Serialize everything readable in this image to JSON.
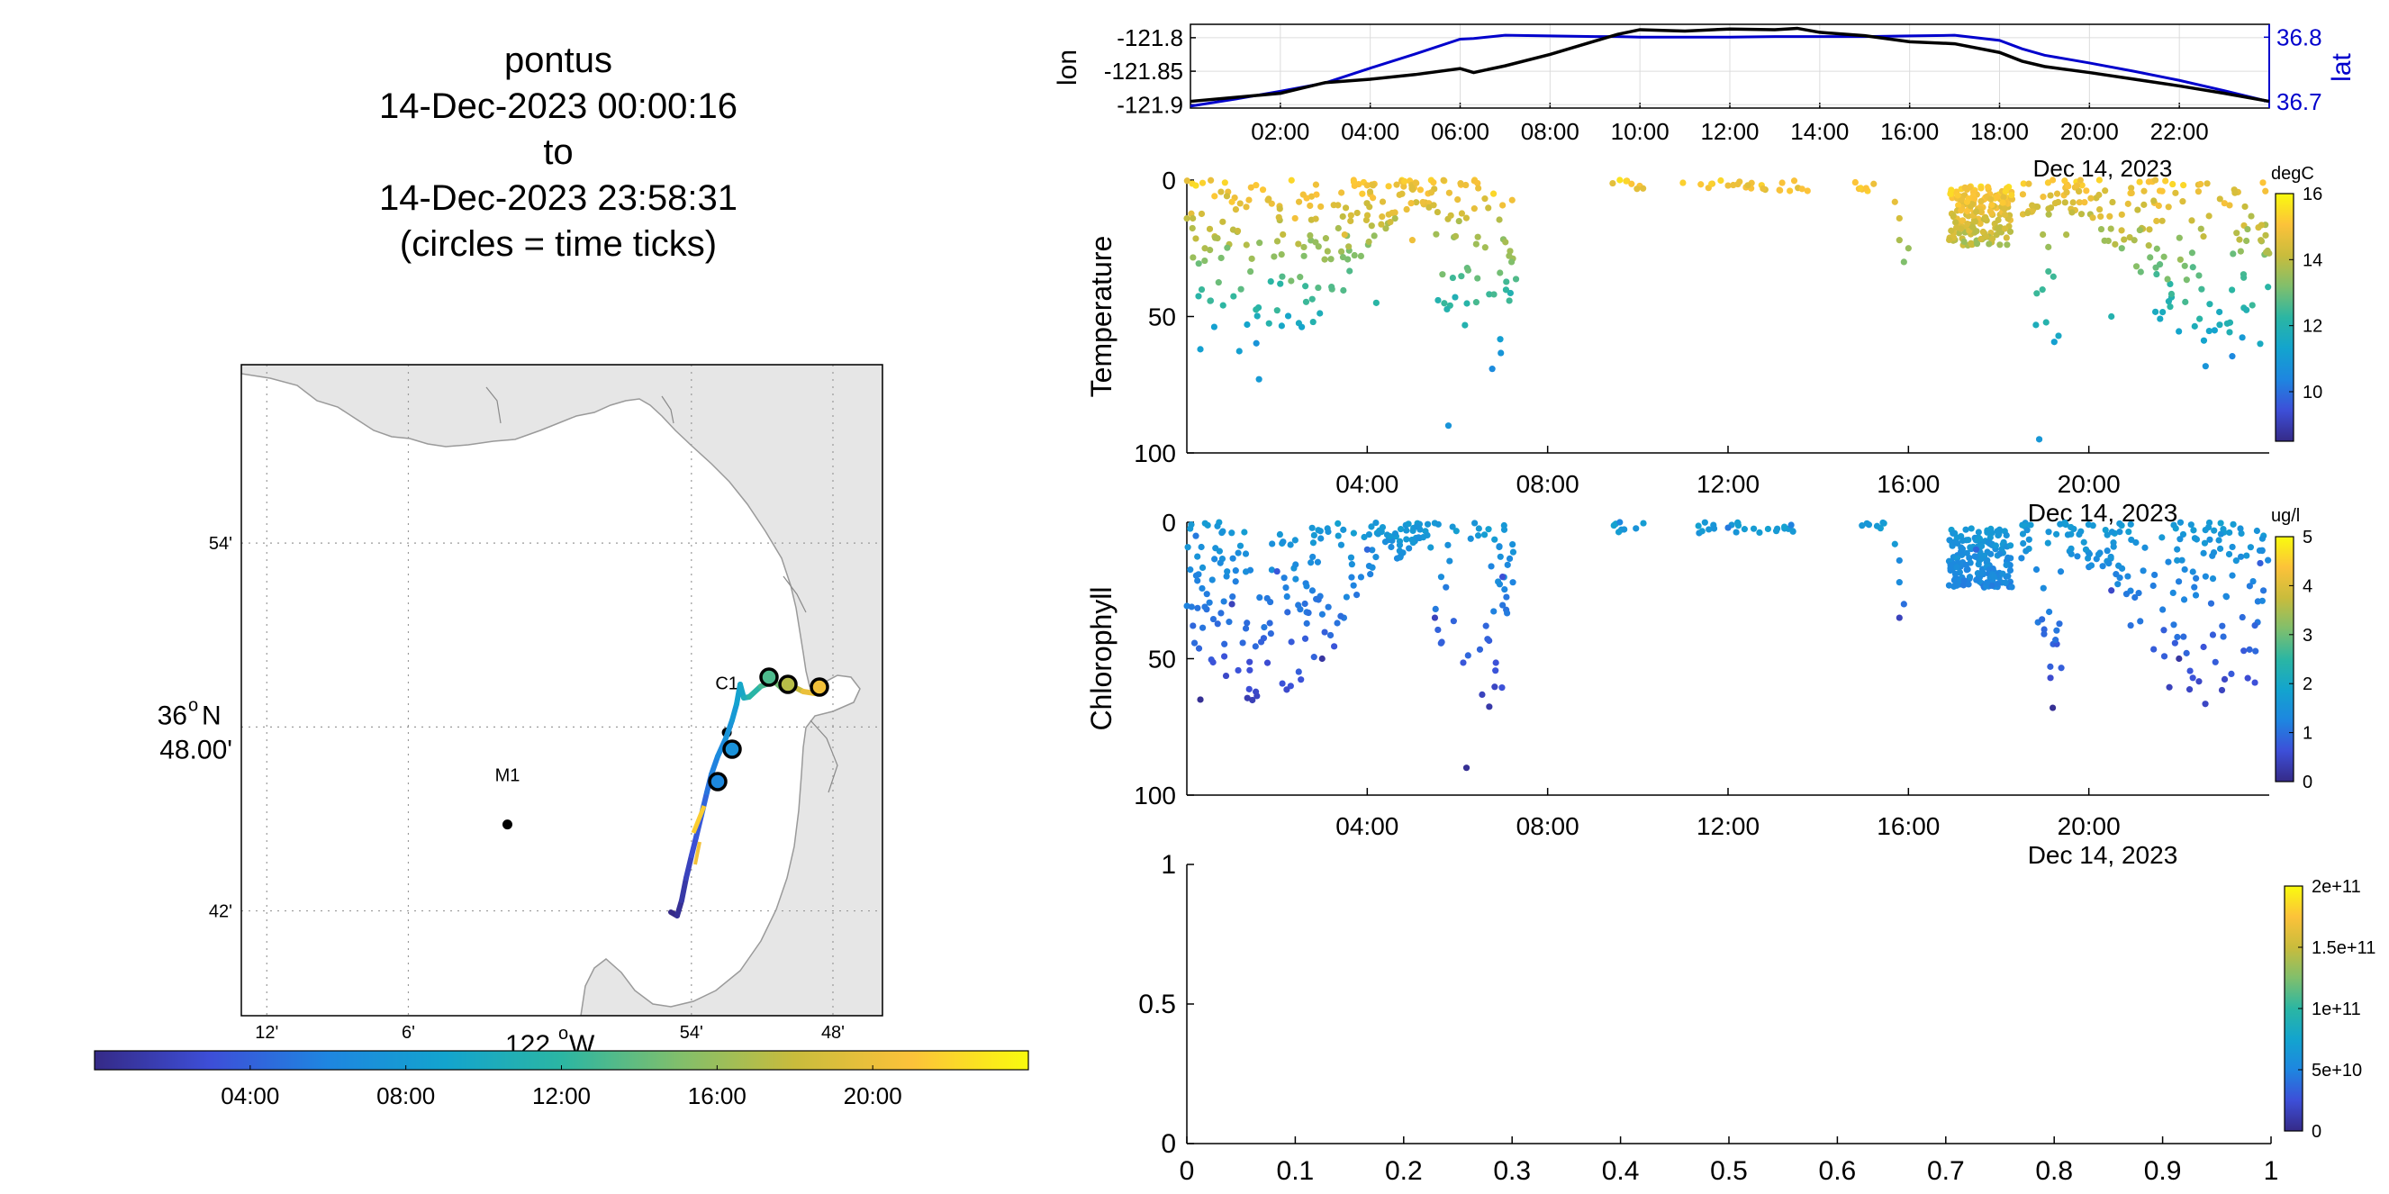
{
  "title": {
    "line1": "pontus",
    "line2": "14-Dec-2023 00:00:16",
    "line3": "to",
    "line4": "14-Dec-2023 23:58:31",
    "line5": "(circles = time ticks)"
  },
  "colors": {
    "lon_line": "#000000",
    "lat_line": "#0000cc",
    "land": "#e6e6e6",
    "coast": "#9a9a9a",
    "colormap": [
      "#352a87",
      "#3d4fd8",
      "#1e86e0",
      "#13a4ce",
      "#2bb6a3",
      "#80bf6c",
      "#c9bc3c",
      "#fcc23a",
      "#f9fb0e"
    ]
  },
  "map": {
    "lon_ticks": [
      "12'",
      "6'",
      "54'",
      "48'"
    ],
    "lon_main": "122",
    "lon_main_suffix": "W",
    "lat_ticks": [
      "54'",
      "42'"
    ],
    "lat_main_deg": "36",
    "lat_main_suffix": "N",
    "lat_main_min": "48.00'",
    "stations": [
      {
        "name": "M1",
        "lon": -122.03,
        "lat": 36.747
      },
      {
        "name": "C1",
        "lon": -121.875,
        "lat": 36.797
      }
    ],
    "lon_range": [
      -122.218,
      -121.765
    ],
    "lat_range": [
      36.643,
      36.997
    ],
    "track_colorbar_ticks": [
      "04:00",
      "08:00",
      "12:00",
      "16:00",
      "20:00"
    ]
  },
  "chart_data": [
    {
      "type": "line",
      "panel": "position",
      "xlabel": "Dec 14, 2023",
      "x_ticks": [
        "02:00",
        "04:00",
        "06:00",
        "08:00",
        "10:00",
        "12:00",
        "14:00",
        "16:00",
        "18:00",
        "20:00",
        "22:00"
      ],
      "xlim_hours": [
        0,
        24
      ],
      "ylabel_left": "lon",
      "ylabel_right": "lat",
      "yticks_left": [
        "-121.8",
        "-121.85",
        "-121.9"
      ],
      "yticks_right": [
        "36.8",
        "36.7"
      ],
      "ylim_left": [
        -121.905,
        -121.78
      ],
      "ylim_right": [
        36.69,
        36.82
      ],
      "x_hours": [
        0,
        1,
        2,
        3,
        4,
        5,
        6,
        6.3,
        7,
        8,
        9,
        9.5,
        10,
        11,
        12,
        13,
        13.5,
        14,
        15,
        16,
        17,
        18,
        18.5,
        19,
        20,
        21,
        22,
        23,
        24
      ],
      "series": [
        {
          "name": "lon",
          "axis": "left",
          "values": [
            -121.895,
            -121.889,
            -121.883,
            -121.867,
            -121.862,
            -121.855,
            -121.846,
            -121.852,
            -121.842,
            -121.825,
            -121.805,
            -121.795,
            -121.788,
            -121.79,
            -121.787,
            -121.788,
            -121.786,
            -121.792,
            -121.797,
            -121.806,
            -121.809,
            -121.822,
            -121.835,
            -121.843,
            -121.852,
            -121.862,
            -121.872,
            -121.883,
            -121.895
          ]
        },
        {
          "name": "lat",
          "axis": "right",
          "values": [
            36.693,
            36.704,
            36.716,
            36.729,
            36.752,
            36.774,
            36.797,
            36.798,
            36.803,
            36.802,
            36.801,
            36.801,
            36.8,
            36.8,
            36.8,
            36.801,
            36.801,
            36.801,
            36.801,
            36.802,
            36.803,
            36.795,
            36.782,
            36.772,
            36.76,
            36.747,
            36.733,
            36.717,
            36.7
          ]
        }
      ]
    },
    {
      "type": "scatter",
      "panel": "temperature",
      "ylabel": "Temperature",
      "xlabel": "Dec 14, 2023",
      "x_ticks": [
        "04:00",
        "08:00",
        "12:00",
        "16:00",
        "20:00"
      ],
      "xlim_hours": [
        0,
        24
      ],
      "y_ticks": [
        "0",
        "50",
        "100"
      ],
      "ylim": [
        0,
        100
      ],
      "y_reversed": true,
      "colorbar_label": "degC",
      "colorbar_ticks": [
        "16",
        "14",
        "12",
        "10"
      ],
      "clim": [
        8.5,
        16
      ],
      "sample_points": [
        {
          "t": 0.2,
          "z": 2,
          "c": 15.5
        },
        {
          "t": 0.4,
          "z": 25,
          "c": 13.8
        },
        {
          "t": 0.3,
          "z": 62,
          "c": 11.2
        },
        {
          "t": 1.0,
          "z": 8,
          "c": 15.2
        },
        {
          "t": 1.2,
          "z": 40,
          "c": 12.8
        },
        {
          "t": 1.6,
          "z": 73,
          "c": 11.0
        },
        {
          "t": 2.4,
          "z": 14,
          "c": 14.9
        },
        {
          "t": 2.8,
          "z": 52,
          "c": 12.0
        },
        {
          "t": 3.5,
          "z": 20,
          "c": 14.6
        },
        {
          "t": 4.2,
          "z": 45,
          "c": 12.2
        },
        {
          "t": 5.0,
          "z": 22,
          "c": 14.8
        },
        {
          "t": 5.8,
          "z": 90,
          "c": 10.8
        },
        {
          "t": 6.8,
          "z": 5,
          "c": 15.4
        },
        {
          "t": 7.2,
          "z": 30,
          "c": 13.2
        },
        {
          "t": 9.6,
          "z": 0,
          "c": 15.6
        },
        {
          "t": 11.0,
          "z": 1,
          "c": 15.3
        },
        {
          "t": 12.0,
          "z": 2,
          "c": 14.8
        },
        {
          "t": 13.2,
          "z": 1,
          "c": 15.0
        },
        {
          "t": 16.0,
          "z": 25,
          "c": 13.5
        },
        {
          "t": 17.3,
          "z": 8,
          "c": 15.2
        },
        {
          "t": 18.0,
          "z": 18,
          "c": 14.0
        },
        {
          "t": 18.9,
          "z": 95,
          "c": 10.9
        },
        {
          "t": 19.5,
          "z": 20,
          "c": 13.8
        },
        {
          "t": 20.5,
          "z": 50,
          "c": 12.0
        },
        {
          "t": 21.5,
          "z": 15,
          "c": 14.6
        },
        {
          "t": 22.5,
          "z": 40,
          "c": 12.5
        },
        {
          "t": 23.8,
          "z": 60,
          "c": 11.6
        }
      ]
    },
    {
      "type": "scatter",
      "panel": "chlorophyll",
      "ylabel": "Chlorophyll",
      "xlabel": "Dec 14, 2023",
      "x_ticks": [
        "04:00",
        "08:00",
        "12:00",
        "16:00",
        "20:00"
      ],
      "xlim_hours": [
        0,
        24
      ],
      "y_ticks": [
        "0",
        "50",
        "100"
      ],
      "ylim": [
        0,
        100
      ],
      "y_reversed": true,
      "colorbar_label": "ug/l",
      "colorbar_ticks": [
        "5",
        "4",
        "3",
        "2",
        "1",
        "0"
      ],
      "clim": [
        0,
        5
      ],
      "sample_points": [
        {
          "t": 0.2,
          "z": 5,
          "c": 1.1
        },
        {
          "t": 0.3,
          "z": 65,
          "c": 0.1
        },
        {
          "t": 1.0,
          "z": 30,
          "c": 0.4
        },
        {
          "t": 2.0,
          "z": 18,
          "c": 0.7
        },
        {
          "t": 3.0,
          "z": 50,
          "c": 0.2
        },
        {
          "t": 4.0,
          "z": 10,
          "c": 0.9
        },
        {
          "t": 5.5,
          "z": 35,
          "c": 0.4
        },
        {
          "t": 6.2,
          "z": 90,
          "c": 0.1
        },
        {
          "t": 7.0,
          "z": 20,
          "c": 0.6
        },
        {
          "t": 9.6,
          "z": 0,
          "c": 1.3
        },
        {
          "t": 12.0,
          "z": 2,
          "c": 1.1
        },
        {
          "t": 13.4,
          "z": 1,
          "c": 1.2
        },
        {
          "t": 15.8,
          "z": 35,
          "c": 0.4
        },
        {
          "t": 17.5,
          "z": 10,
          "c": 0.9
        },
        {
          "t": 19.2,
          "z": 68,
          "c": 0.1
        },
        {
          "t": 20.5,
          "z": 25,
          "c": 0.5
        },
        {
          "t": 22.0,
          "z": 50,
          "c": 0.2
        },
        {
          "t": 23.8,
          "z": 15,
          "c": 0.8
        }
      ]
    },
    {
      "type": "scatter",
      "panel": "empty",
      "x_ticks": [
        "0",
        "0.1",
        "0.2",
        "0.3",
        "0.4",
        "0.5",
        "0.6",
        "0.7",
        "0.8",
        "0.9",
        "1"
      ],
      "y_ticks": [
        "1",
        "0.5",
        "0"
      ],
      "xlim": [
        0,
        1
      ],
      "ylim": [
        0,
        1
      ],
      "colorbar_ticks": [
        "2e+11",
        "1.5e+11",
        "1e+11",
        "5e+10",
        "0"
      ],
      "clim": [
        0,
        200000000000
      ],
      "values": []
    }
  ]
}
